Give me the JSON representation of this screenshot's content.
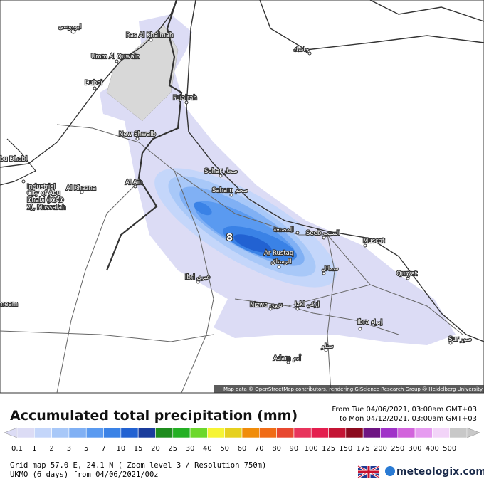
{
  "map": {
    "places": [
      "ابوموسى",
      "Ras Al Khaimah",
      "Umm Al Quwain",
      "Dubai",
      "Fujairah",
      "New Shwaib",
      "Abu Dhabi",
      "Industrial",
      "City of Abu",
      "Dhabi (ICAD",
      "2), Mussafah",
      "Al Khazna",
      "Al Ain",
      "Sohar صحار",
      "Saham صحم",
      "المصنعة",
      "Seeb السيب",
      "Muscat",
      "Ar Rustaq",
      "الرستاق",
      "سمائل",
      "Ibri عبري",
      "Quryat",
      "Nizwa نزوى",
      "Izki إزكي",
      "Ibra إبراء",
      "Sur صور",
      "سناو",
      "Adam أدم",
      "meem",
      "جاسك"
    ],
    "max_marker": "8",
    "attribution": "Map data © OpenStreetMap contributors, rendering GIScience Research Group @ Heidelberg University"
  },
  "legend": {
    "title": "Accumulated total precipitation (mm)",
    "from": "From Tue 04/06/2021, 03:00am GMT+03",
    "to": "to Mon 04/12/2021, 03:00am GMT+03",
    "items": [
      {
        "label": "0.1",
        "color": "#dcdcf5"
      },
      {
        "label": "1",
        "color": "#c4d6fa"
      },
      {
        "label": "2",
        "color": "#a8c8f8"
      },
      {
        "label": "3",
        "color": "#80b0f4"
      },
      {
        "label": "5",
        "color": "#5a9af0"
      },
      {
        "label": "7",
        "color": "#3a82e6"
      },
      {
        "label": "10",
        "color": "#2262d2"
      },
      {
        "label": "15",
        "color": "#1a3c9c"
      },
      {
        "label": "20",
        "color": "#1e8c1e"
      },
      {
        "label": "25",
        "color": "#24b024"
      },
      {
        "label": "30",
        "color": "#6cd82c"
      },
      {
        "label": "40",
        "color": "#f6f434"
      },
      {
        "label": "50",
        "color": "#e6d01e"
      },
      {
        "label": "60",
        "color": "#f08c0a"
      },
      {
        "label": "70",
        "color": "#f06c16"
      },
      {
        "label": "80",
        "color": "#e84830"
      },
      {
        "label": "90",
        "color": "#e8345c"
      },
      {
        "label": "100",
        "color": "#e41e4e"
      },
      {
        "label": "125",
        "color": "#c41434"
      },
      {
        "label": "150",
        "color": "#8c0a1e"
      },
      {
        "label": "175",
        "color": "#6e1482"
      },
      {
        "label": "200",
        "color": "#a032c8"
      },
      {
        "label": "250",
        "color": "#d264dc"
      },
      {
        "label": "300",
        "color": "#e69cf0"
      },
      {
        "label": "400",
        "color": "#f2d4f8"
      },
      {
        "label": "500",
        "color": "#c8c8c8"
      }
    ]
  },
  "footer": {
    "grid": "Grid map 57.0 E, 24.1 N ( Zoom level 3 / Resolution 750m)",
    "model": "UKMO (6 days) from 04/06/2021/00z",
    "brand": "meteologix.com"
  }
}
